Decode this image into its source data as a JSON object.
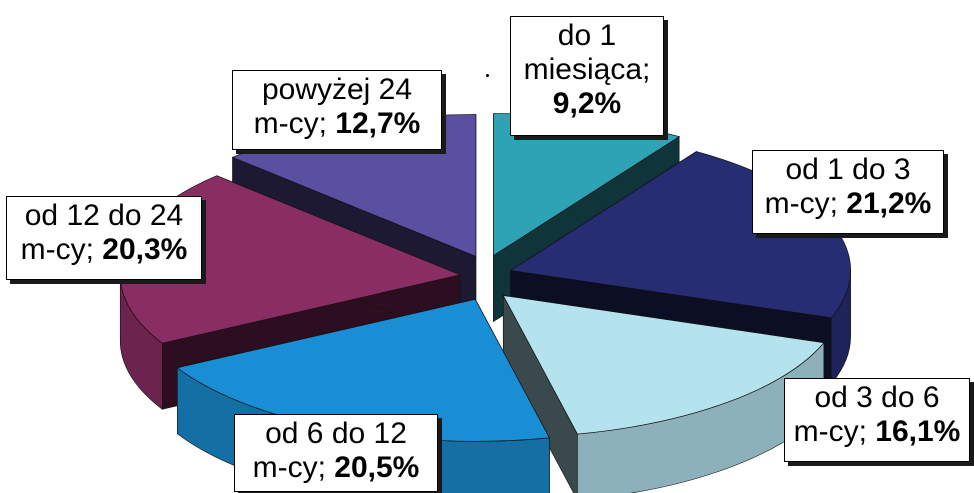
{
  "chart_data": {
    "type": "pie",
    "style": "3d-exploded",
    "slices": [
      {
        "key": "s1",
        "label_line1": "do 1",
        "label_line2": "miesiąca;",
        "value_text": "9,2%",
        "value": 9.2,
        "color": "#2fa3b6"
      },
      {
        "key": "s2",
        "label_line1": "od 1 do 3",
        "label_line2": "m-cy;",
        "value_text": "21,2%",
        "value": 21.2,
        "color": "#262d72"
      },
      {
        "key": "s3",
        "label_line1": "od 3 do 6",
        "label_line2": "m-cy;",
        "value_text": "16,1%",
        "value": 16.1,
        "color": "#b4e3ee"
      },
      {
        "key": "s4",
        "label_line1": "od 6 do 12",
        "label_line2": "m-cy;",
        "value_text": "20,5%",
        "value": 20.5,
        "color": "#1a8ed4"
      },
      {
        "key": "s5",
        "label_line1": "od 12 do 24",
        "label_line2": "m-cy;",
        "value_text": "20,3%",
        "value": 20.3,
        "color": "#8a2d63"
      },
      {
        "key": "s6",
        "label_line1": "powyżej 24",
        "label_line2": "m-cy;",
        "value_text": "12,7%",
        "value": 12.7,
        "color": "#5a4fa0"
      }
    ]
  }
}
